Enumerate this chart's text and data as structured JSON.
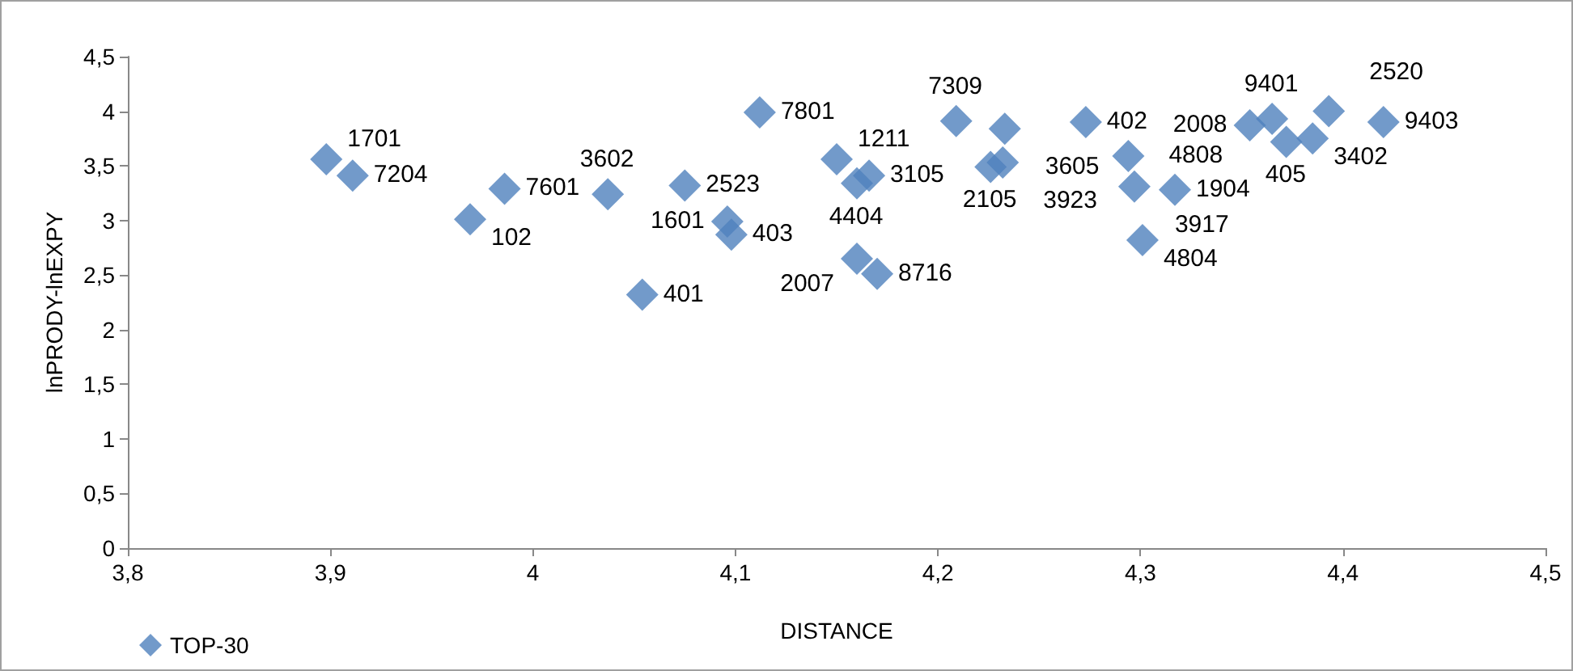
{
  "chart_data": {
    "type": "scatter",
    "xlabel": "DISTANCE",
    "ylabel": "lnPRODY-lnEXPY",
    "marker": "diamond",
    "legend": "bottom left",
    "grid": false,
    "xlim": [
      3.8,
      4.5
    ],
    "xticks": [
      {
        "value": 3.8,
        "label": "3,8"
      },
      {
        "value": 3.9,
        "label": "3,9"
      },
      {
        "value": 4,
        "label": "4"
      },
      {
        "value": 4.1,
        "label": "4,1"
      },
      {
        "value": 4.2,
        "label": "4,2"
      },
      {
        "value": 4.3,
        "label": "4,3"
      },
      {
        "value": 4.4,
        "label": "4,4"
      },
      {
        "value": 4.5,
        "label": "4,5"
      }
    ],
    "ylim": [
      0,
      4.5
    ],
    "yticks": [
      0,
      {
        "value": 0.5,
        "label": "0,5"
      },
      1,
      {
        "value": 1.5,
        "label": "1,5"
      },
      2,
      {
        "value": 2.5,
        "label": "2,5"
      },
      3,
      {
        "value": 3.5,
        "label": "3,5"
      },
      4,
      {
        "value": 4.5,
        "label": "4,5"
      }
    ],
    "series": [
      {
        "name": "TOP-30",
        "color": "#4f81bd",
        "x": [
          3.898,
          3.911,
          3.969,
          3.986,
          4.037,
          4.075,
          4.096,
          4.098,
          4.054,
          4.112,
          4.15,
          4.166,
          4.16,
          4.16,
          4.17,
          4.209,
          4.233,
          4.232,
          4.226,
          4.273,
          4.294,
          4.297,
          4.317,
          4.301,
          4.365,
          4.354,
          4.372,
          4.385,
          4.393,
          4.42
        ],
        "values": [
          3.56,
          3.41,
          3.01,
          3.29,
          3.24,
          3.32,
          2.99,
          2.87,
          2.32,
          3.99,
          3.56,
          3.41,
          3.34,
          2.65,
          2.51,
          3.91,
          3.84,
          3.53,
          3.49,
          3.9,
          3.59,
          3.31,
          3.28,
          2.82,
          3.93,
          3.87,
          3.72,
          3.75,
          4.0,
          3.9
        ]
      }
    ],
    "annotations": [
      {
        "text": "1701",
        "x": 3.898,
        "y": 3.56
      },
      {
        "text": "7204",
        "x": 3.911,
        "y": 3.41
      },
      {
        "text": "102",
        "x": 3.969,
        "y": 3.01
      },
      {
        "text": "7601",
        "x": 3.986,
        "y": 3.29
      },
      {
        "text": "3602",
        "x": 4.037,
        "y": 3.24
      },
      {
        "text": "2523",
        "x": 4.075,
        "y": 3.32
      },
      {
        "text": "1601",
        "x": 4.096,
        "y": 2.99
      },
      {
        "text": "403",
        "x": 4.098,
        "y": 2.87
      },
      {
        "text": "401",
        "x": 4.054,
        "y": 2.32
      },
      {
        "text": "7801",
        "x": 4.112,
        "y": 3.99
      },
      {
        "text": "1211",
        "x": 4.15,
        "y": 3.56
      },
      {
        "text": "3105",
        "x": 4.166,
        "y": 3.41
      },
      {
        "text": "4404",
        "x": 4.16,
        "y": 3.34
      },
      {
        "text": "2007",
        "x": 4.16,
        "y": 2.65
      },
      {
        "text": "8716",
        "x": 4.17,
        "y": 2.51
      },
      {
        "text": "7309",
        "x": 4.209,
        "y": 3.91
      },
      {
        "text": "3605",
        "x": 4.233,
        "y": 3.84
      },
      {
        "text": "3923",
        "x": 4.232,
        "y": 3.53
      },
      {
        "text": "2105",
        "x": 4.226,
        "y": 3.49
      },
      {
        "text": "402",
        "x": 4.273,
        "y": 3.9
      },
      {
        "text": "4808",
        "x": 4.294,
        "y": 3.59
      },
      {
        "text": "3917",
        "x": 4.297,
        "y": 3.31
      },
      {
        "text": "1904",
        "x": 4.317,
        "y": 3.28
      },
      {
        "text": "4804",
        "x": 4.301,
        "y": 2.82
      },
      {
        "text": "9401",
        "x": 4.365,
        "y": 3.93
      },
      {
        "text": "2008",
        "x": 4.354,
        "y": 3.87
      },
      {
        "text": "405",
        "x": 4.372,
        "y": 3.72
      },
      {
        "text": "3402",
        "x": 4.385,
        "y": 3.75
      },
      {
        "text": "2520",
        "x": 4.393,
        "y": 4.0
      },
      {
        "text": "9403",
        "x": 4.42,
        "y": 3.9
      }
    ]
  }
}
